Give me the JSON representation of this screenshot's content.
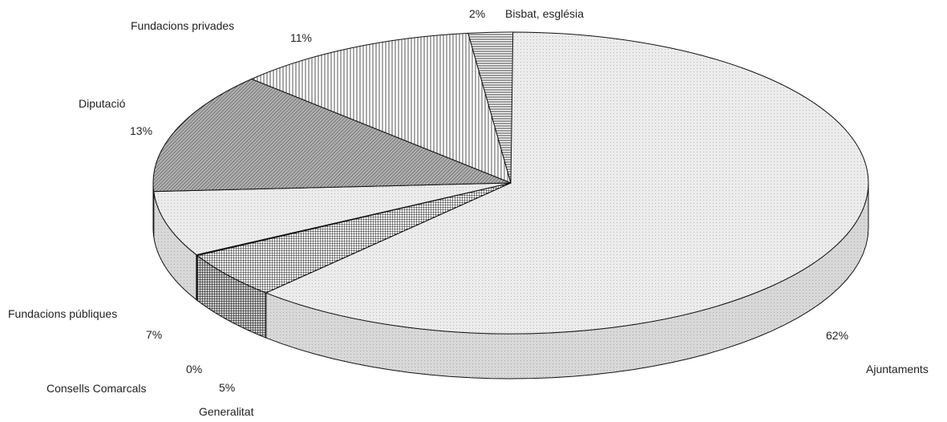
{
  "chart_data": {
    "type": "pie",
    "style": "3d",
    "slices": [
      {
        "name": "Ajuntaments",
        "value": 62,
        "label": "62%",
        "fill": "#e6e6e6",
        "pattern": "light-dots"
      },
      {
        "name": "Generalitat",
        "value": 5,
        "label": "5%",
        "fill": "#5a5a5a",
        "pattern": "crosshatch"
      },
      {
        "name": "Consells Comarcals",
        "value": 0,
        "label": "0%",
        "fill": "#333333",
        "pattern": "solid"
      },
      {
        "name": "Fundacions públiques",
        "value": 7,
        "label": "7%",
        "fill": "#dcdcdc",
        "pattern": "light-dots"
      },
      {
        "name": "Diputació",
        "value": 13,
        "label": "13%",
        "fill": "#8a8a8a",
        "pattern": "diagonal-lines"
      },
      {
        "name": "Fundacions privades",
        "value": 11,
        "label": "11%",
        "fill": "#ffffff",
        "pattern": "vertical-lines"
      },
      {
        "name": "Bisbat, església",
        "value": 2,
        "label": "2%",
        "fill": "#ffffff",
        "pattern": "horizontal-lines"
      }
    ],
    "start_angle_deg": 0,
    "direction": "clockwise",
    "legend": "none"
  }
}
